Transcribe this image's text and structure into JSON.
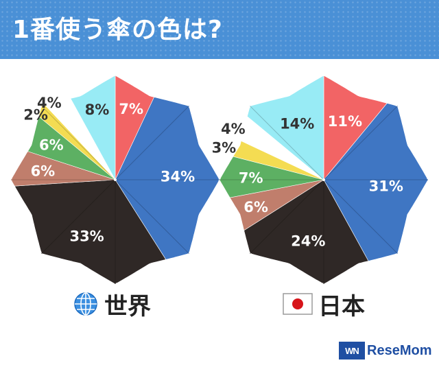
{
  "header": {
    "title": "1番使う傘の色は?"
  },
  "captions": {
    "world": "世界",
    "japan": "日本"
  },
  "brand": {
    "mark": "WN",
    "name": "ReseMom"
  },
  "chart_data": [
    {
      "type": "pie",
      "label": "世界",
      "slices": [
        {
          "color_name": "red",
          "value": 7,
          "label": "7%",
          "color": "#f26465"
        },
        {
          "color_name": "blue",
          "value": 34,
          "label": "34%",
          "color": "#3f76c3"
        },
        {
          "color_name": "black",
          "value": 33,
          "label": "33%",
          "color": "#2f2826"
        },
        {
          "color_name": "brown",
          "value": 6,
          "label": "6%",
          "color": "#c07e6c"
        },
        {
          "color_name": "green",
          "value": 6,
          "label": "6%",
          "color": "#5db063"
        },
        {
          "color_name": "yellow",
          "value": 2,
          "label": "2%",
          "color": "#f4dc52"
        },
        {
          "color_name": "white",
          "value": 4,
          "label": "4%",
          "color": "#ffffff"
        },
        {
          "color_name": "light-blue",
          "value": 8,
          "label": "8%",
          "color": "#98ebf5"
        }
      ]
    },
    {
      "type": "pie",
      "label": "日本",
      "slices": [
        {
          "color_name": "red",
          "value": 11,
          "label": "11%",
          "color": "#f26465"
        },
        {
          "color_name": "blue",
          "value": 31,
          "label": "31%",
          "color": "#3f76c3"
        },
        {
          "color_name": "black",
          "value": 24,
          "label": "24%",
          "color": "#2f2826"
        },
        {
          "color_name": "brown",
          "value": 6,
          "label": "6%",
          "color": "#c07e6c"
        },
        {
          "color_name": "green",
          "value": 7,
          "label": "7%",
          "color": "#5db063"
        },
        {
          "color_name": "yellow",
          "value": 3,
          "label": "3%",
          "color": "#f4dc52"
        },
        {
          "color_name": "white",
          "value": 4,
          "label": "4%",
          "color": "#ffffff"
        },
        {
          "color_name": "light-blue",
          "value": 14,
          "label": "14%",
          "color": "#98ebf5"
        }
      ]
    }
  ]
}
